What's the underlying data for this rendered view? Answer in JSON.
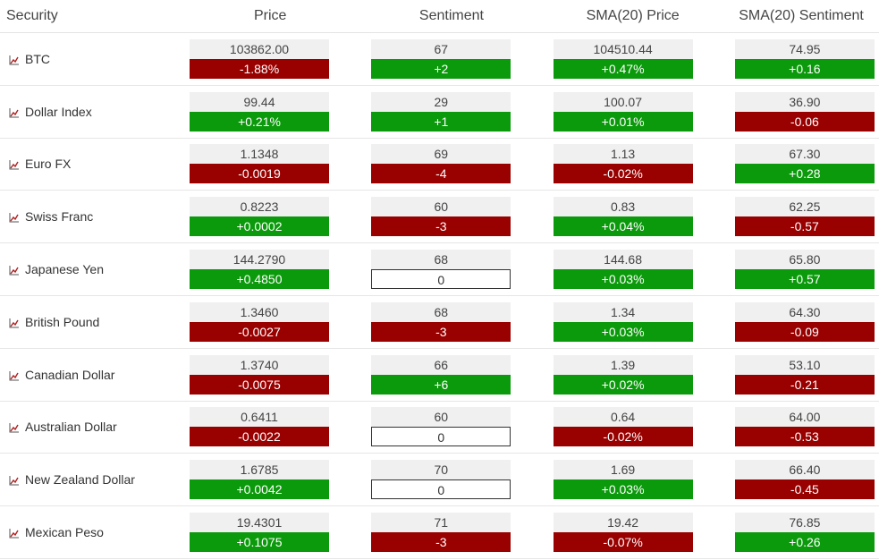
{
  "columns": {
    "security": "Security",
    "price": "Price",
    "sentiment": "Sentiment",
    "sma_price": "SMA(20) Price",
    "sma_sentiment": "SMA(20) Sentiment"
  },
  "icon": "line-chart-icon",
  "colors": {
    "up": "#0b9a0b",
    "down": "#990000",
    "icon": "#b02020"
  },
  "rows": [
    {
      "name": "BTC",
      "price": "103862.00",
      "price_chg": "-1.88%",
      "price_dir": "down",
      "sent": "67",
      "sent_chg": "+2",
      "sent_dir": "up",
      "sma_price": "104510.44",
      "sma_price_chg": "+0.47%",
      "sma_price_dir": "up",
      "sma_sent": "74.95",
      "sma_sent_chg": "+0.16",
      "sma_sent_dir": "up"
    },
    {
      "name": "Dollar Index",
      "price": "99.44",
      "price_chg": "+0.21%",
      "price_dir": "up",
      "sent": "29",
      "sent_chg": "+1",
      "sent_dir": "up",
      "sma_price": "100.07",
      "sma_price_chg": "+0.01%",
      "sma_price_dir": "up",
      "sma_sent": "36.90",
      "sma_sent_chg": "-0.06",
      "sma_sent_dir": "down"
    },
    {
      "name": "Euro FX",
      "price": "1.1348",
      "price_chg": "-0.0019",
      "price_dir": "down",
      "sent": "69",
      "sent_chg": "-4",
      "sent_dir": "down",
      "sma_price": "1.13",
      "sma_price_chg": "-0.02%",
      "sma_price_dir": "down",
      "sma_sent": "67.30",
      "sma_sent_chg": "+0.28",
      "sma_sent_dir": "up"
    },
    {
      "name": "Swiss Franc",
      "price": "0.8223",
      "price_chg": "+0.0002",
      "price_dir": "up",
      "sent": "60",
      "sent_chg": "-3",
      "sent_dir": "down",
      "sma_price": "0.83",
      "sma_price_chg": "+0.04%",
      "sma_price_dir": "up",
      "sma_sent": "62.25",
      "sma_sent_chg": "-0.57",
      "sma_sent_dir": "down"
    },
    {
      "name": "Japanese Yen",
      "price": "144.2790",
      "price_chg": "+0.4850",
      "price_dir": "up",
      "sent": "68",
      "sent_chg": "0",
      "sent_dir": "flat",
      "sma_price": "144.68",
      "sma_price_chg": "+0.03%",
      "sma_price_dir": "up",
      "sma_sent": "65.80",
      "sma_sent_chg": "+0.57",
      "sma_sent_dir": "up"
    },
    {
      "name": "British Pound",
      "price": "1.3460",
      "price_chg": "-0.0027",
      "price_dir": "down",
      "sent": "68",
      "sent_chg": "-3",
      "sent_dir": "down",
      "sma_price": "1.34",
      "sma_price_chg": "+0.03%",
      "sma_price_dir": "up",
      "sma_sent": "64.30",
      "sma_sent_chg": "-0.09",
      "sma_sent_dir": "down"
    },
    {
      "name": "Canadian Dollar",
      "price": "1.3740",
      "price_chg": "-0.0075",
      "price_dir": "down",
      "sent": "66",
      "sent_chg": "+6",
      "sent_dir": "up",
      "sma_price": "1.39",
      "sma_price_chg": "+0.02%",
      "sma_price_dir": "up",
      "sma_sent": "53.10",
      "sma_sent_chg": "-0.21",
      "sma_sent_dir": "down"
    },
    {
      "name": "Australian Dollar",
      "price": "0.6411",
      "price_chg": "-0.0022",
      "price_dir": "down",
      "sent": "60",
      "sent_chg": "0",
      "sent_dir": "flat",
      "sma_price": "0.64",
      "sma_price_chg": "-0.02%",
      "sma_price_dir": "down",
      "sma_sent": "64.00",
      "sma_sent_chg": "-0.53",
      "sma_sent_dir": "down"
    },
    {
      "name": "New Zealand Dollar",
      "price": "1.6785",
      "price_chg": "+0.0042",
      "price_dir": "up",
      "sent": "70",
      "sent_chg": "0",
      "sent_dir": "flat",
      "sma_price": "1.69",
      "sma_price_chg": "+0.03%",
      "sma_price_dir": "up",
      "sma_sent": "66.40",
      "sma_sent_chg": "-0.45",
      "sma_sent_dir": "down"
    },
    {
      "name": "Mexican Peso",
      "price": "19.4301",
      "price_chg": "+0.1075",
      "price_dir": "up",
      "sent": "71",
      "sent_chg": "-3",
      "sent_dir": "down",
      "sma_price": "19.42",
      "sma_price_chg": "-0.07%",
      "sma_price_dir": "down",
      "sma_sent": "76.85",
      "sma_sent_chg": "+0.26",
      "sma_sent_dir": "up"
    }
  ]
}
